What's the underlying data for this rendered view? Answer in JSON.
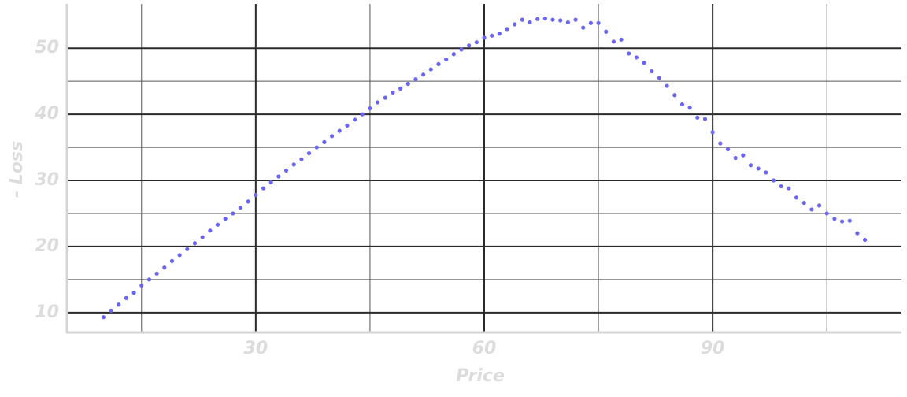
{
  "chart_data": {
    "type": "scatter",
    "xlabel": "Price",
    "ylabel": "- Loss",
    "color": "#6b66f2",
    "xlim": [
      5.2,
      114.8
    ],
    "ylim": [
      7,
      56.7
    ],
    "xticks": [
      30,
      60,
      90
    ],
    "yticks": [
      10,
      20,
      30,
      40,
      50
    ],
    "xticks_minor": [
      15,
      45,
      75,
      105
    ],
    "yticks_minor": [
      15,
      25,
      35,
      45
    ],
    "grid": true,
    "x": [
      10,
      11,
      12,
      13,
      14,
      15,
      16,
      17,
      18,
      19,
      20,
      21,
      22,
      23,
      24,
      25,
      26,
      27,
      28,
      29,
      30,
      31,
      32,
      33,
      34,
      35,
      36,
      37,
      38,
      39,
      40,
      41,
      42,
      43,
      44,
      45,
      46,
      47,
      48,
      49,
      50,
      51,
      52,
      53,
      54,
      55,
      56,
      57,
      58,
      59,
      60,
      61,
      62,
      63,
      64,
      65,
      66,
      67,
      68,
      69,
      70,
      71,
      72,
      73,
      74,
      75,
      76,
      77,
      78,
      79,
      80,
      81,
      82,
      83,
      84,
      85,
      86,
      87,
      88,
      89,
      90,
      91,
      92,
      93,
      94,
      95,
      96,
      97,
      98,
      99,
      100,
      101,
      102,
      103,
      104,
      105,
      106,
      107,
      108,
      109,
      110
    ],
    "values": [
      9.3,
      10.3,
      11.2,
      12.2,
      13.0,
      14.1,
      15.0,
      15.9,
      16.8,
      17.8,
      18.7,
      19.6,
      20.5,
      21.4,
      22.4,
      23.3,
      24.2,
      25.0,
      25.9,
      26.8,
      27.8,
      28.8,
      29.7,
      30.6,
      31.5,
      32.4,
      33.2,
      34.1,
      35.0,
      35.8,
      36.7,
      37.5,
      38.3,
      39.2,
      40.0,
      40.9,
      41.8,
      42.5,
      43.3,
      43.9,
      44.6,
      45.3,
      46.0,
      46.8,
      47.6,
      48.3,
      49.1,
      49.8,
      50.4,
      50.9,
      51.6,
      51.9,
      52.2,
      52.9,
      53.6,
      54.3,
      53.9,
      54.4,
      54.5,
      54.3,
      54.2,
      53.9,
      54.3,
      53.1,
      53.8,
      53.8,
      52.5,
      51.0,
      51.3,
      49.2,
      48.6,
      47.8,
      46.5,
      45.5,
      44.3,
      42.9,
      41.5,
      41.0,
      39.5,
      39.3,
      37.3,
      35.6,
      34.7,
      33.4,
      33.8,
      32.3,
      31.8,
      31.2,
      30.0,
      29.1,
      28.8,
      27.4,
      26.6,
      25.6,
      26.2,
      25.0,
      24.2,
      23.8,
      23.9,
      22.0,
      21.0
    ]
  }
}
